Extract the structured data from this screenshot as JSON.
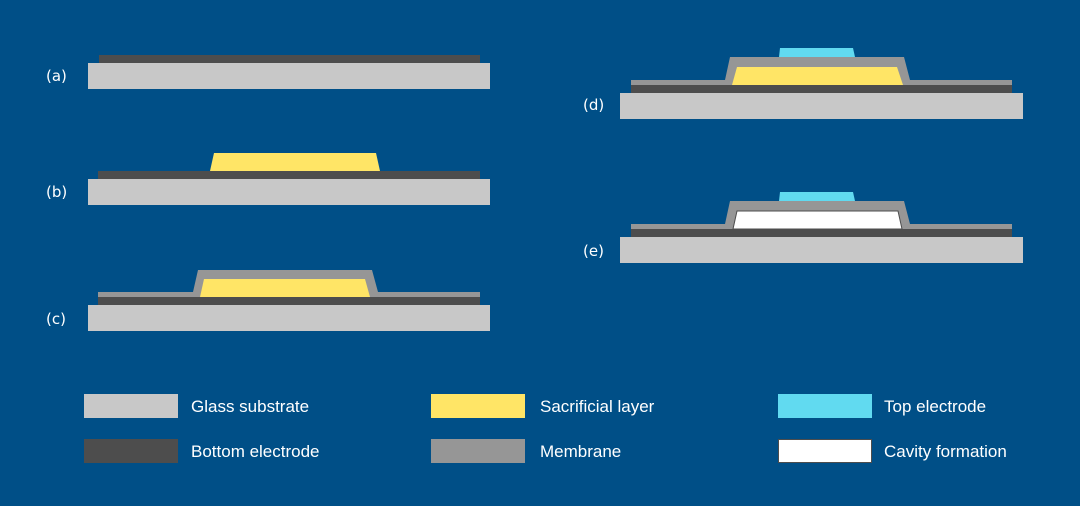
{
  "steps": [
    {
      "label": "(a)"
    },
    {
      "label": "(b)"
    },
    {
      "label": "(c)"
    },
    {
      "label": "(d)"
    },
    {
      "label": "(e)"
    }
  ],
  "legend": [
    {
      "name": "Glass substrate",
      "color": "#c8c8c8"
    },
    {
      "name": "Bottom electrode",
      "color": "#4d4d4d"
    },
    {
      "name": "Sacrificial layer",
      "color": "#ffe566"
    },
    {
      "name": "Membrane",
      "color": "#969696"
    },
    {
      "name": "Top electrode",
      "color": "#61daf0"
    },
    {
      "name": "Cavity formation",
      "color": "#ffffff"
    }
  ],
  "colors": {
    "background": "#004f87"
  }
}
